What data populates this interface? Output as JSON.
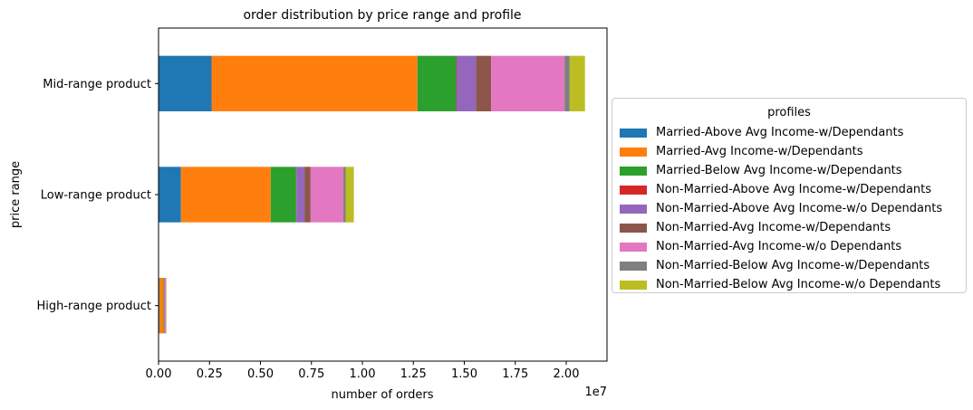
{
  "chart_data": {
    "type": "bar",
    "orientation": "horizontal",
    "stacked": true,
    "title": "order distribution by price range and profile",
    "xlabel": "number of orders",
    "ylabel": "price range",
    "offset_label": "1e7",
    "x_scale": 10000000,
    "xlim": [
      0,
      22000000
    ],
    "xticks": [
      0,
      2500000,
      5000000,
      7500000,
      10000000,
      12500000,
      15000000,
      17500000,
      20000000
    ],
    "xtick_labels": [
      "0.00",
      "0.25",
      "0.50",
      "0.75",
      "1.00",
      "1.25",
      "1.50",
      "1.75",
      "2.00"
    ],
    "categories": [
      "Mid-range product",
      "Low-range product",
      "High-range product"
    ],
    "legend_title": "profiles",
    "legend_position": "center-right outside",
    "series": [
      {
        "name": "Married-Above Avg Income-w/Dependants",
        "color": "#1f77b4",
        "values": [
          2600000,
          1100000,
          40000
        ]
      },
      {
        "name": "Married-Avg Income-w/Dependants",
        "color": "#ff7f0e",
        "values": [
          10100000,
          4400000,
          200000
        ]
      },
      {
        "name": "Married-Below Avg Income-w/Dependants",
        "color": "#2ca02c",
        "values": [
          1900000,
          1250000,
          30000
        ]
      },
      {
        "name": "Non-Married-Above Avg Income-w/Dependants",
        "color": "#d62728",
        "values": [
          20000,
          10000,
          1000
        ]
      },
      {
        "name": "Non-Married-Above Avg Income-w/o Dependants",
        "color": "#9467bd",
        "values": [
          950000,
          400000,
          20000
        ]
      },
      {
        "name": "Non-Married-Avg Income-w/Dependants",
        "color": "#8c564b",
        "values": [
          750000,
          300000,
          15000
        ]
      },
      {
        "name": "Non-Married-Avg Income-w/o Dependants",
        "color": "#e377c2",
        "values": [
          3600000,
          1600000,
          60000
        ]
      },
      {
        "name": "Non-Married-Below Avg Income-w/Dependants",
        "color": "#7f7f7f",
        "values": [
          250000,
          120000,
          8000
        ]
      },
      {
        "name": "Non-Married-Below Avg Income-w/o Dependants",
        "color": "#bcbd22",
        "values": [
          750000,
          400000,
          15000
        ]
      }
    ]
  }
}
